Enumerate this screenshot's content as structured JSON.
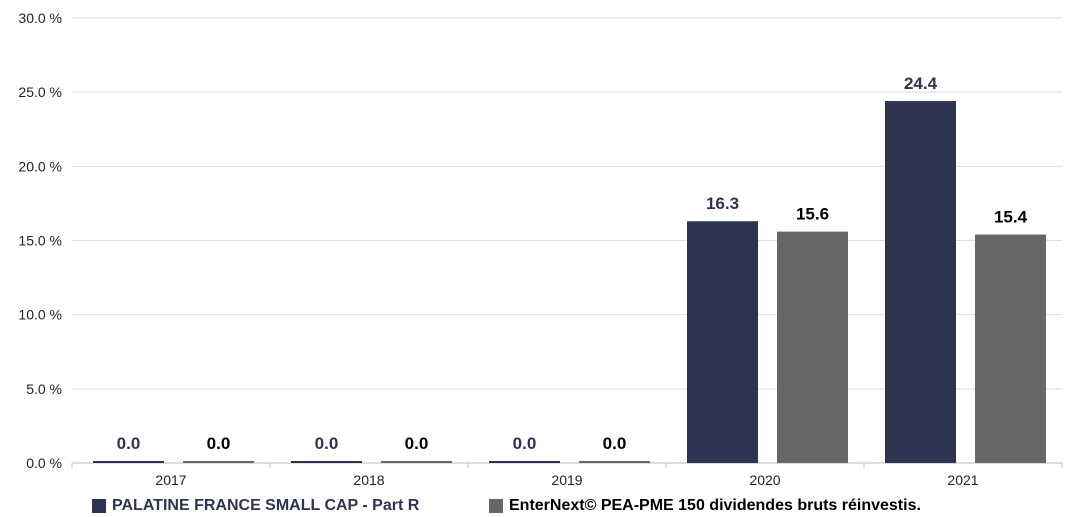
{
  "chart_data": {
    "type": "bar",
    "categories": [
      "2017",
      "2018",
      "2019",
      "2020",
      "2021"
    ],
    "series": [
      {
        "name": "PALATINE FRANCE SMALL CAP - Part R",
        "values": [
          0.0,
          0.0,
          0.0,
          16.3,
          24.4
        ],
        "color": "#2f3352",
        "label_color": "#2f3352"
      },
      {
        "name": "EnterNext© PEA-PME 150 dividendes bruts réinvestis.",
        "values": [
          0.0,
          0.0,
          0.0,
          15.6,
          15.4
        ],
        "color": "#676767",
        "label_color": "#000000"
      }
    ],
    "yticks": [
      "0.0 %",
      "5.0 %",
      "10.0 %",
      "15.0 %",
      "20.0 %",
      "25.0 %",
      "30.0 %"
    ],
    "ylim": [
      0,
      30
    ],
    "grid": true,
    "legend_position": "bottom"
  }
}
